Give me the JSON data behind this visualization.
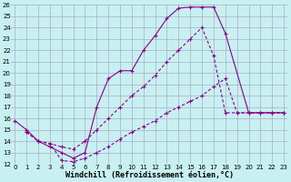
{
  "xlabel": "Windchill (Refroidissement éolien,°C)",
  "bg_color": "#c8f0f0",
  "grid_color": "#aaaacc",
  "line_color": "#880088",
  "xmin": 0,
  "xmax": 23,
  "ymin": 12,
  "ymax": 26,
  "line1_x": [
    0,
    1,
    2,
    3,
    4,
    5,
    6,
    7,
    8,
    9,
    10,
    11,
    12,
    13,
    14,
    15,
    16,
    17,
    18,
    20,
    21,
    22,
    23
  ],
  "line1_y": [
    15.8,
    15.0,
    14.0,
    13.5,
    13.0,
    12.5,
    13.0,
    17.0,
    19.5,
    20.2,
    20.2,
    22.0,
    23.3,
    24.8,
    25.7,
    25.8,
    25.8,
    25.8,
    23.5,
    16.5,
    16.5,
    16.5,
    16.5
  ],
  "line2_x": [
    1,
    2,
    3,
    4,
    5,
    6,
    7,
    8,
    9,
    10,
    11,
    12,
    13,
    14,
    15,
    16,
    17,
    18,
    19,
    20,
    21,
    22,
    23
  ],
  "line2_y": [
    14.8,
    14.0,
    13.8,
    13.5,
    13.3,
    14.0,
    15.0,
    16.0,
    17.0,
    18.0,
    18.8,
    19.8,
    21.0,
    22.0,
    23.0,
    24.0,
    21.5,
    16.5,
    16.5,
    16.5,
    16.5,
    16.5,
    16.5
  ],
  "line3_x": [
    1,
    2,
    3,
    4,
    5,
    6,
    7,
    8,
    9,
    10,
    11,
    12,
    13,
    14,
    15,
    16,
    17,
    18,
    19,
    20,
    21,
    22,
    23
  ],
  "line3_y": [
    14.8,
    14.0,
    13.8,
    12.3,
    12.2,
    12.5,
    13.0,
    13.5,
    14.2,
    14.8,
    15.3,
    15.8,
    16.5,
    17.0,
    17.5,
    18.0,
    18.8,
    19.5,
    16.5,
    16.5,
    16.5,
    16.5,
    16.5
  ],
  "markersize": 2.0,
  "linewidth": 0.8,
  "xtick_fontsize": 5.0,
  "ytick_fontsize": 5.0,
  "xlabel_fontsize": 6.0
}
